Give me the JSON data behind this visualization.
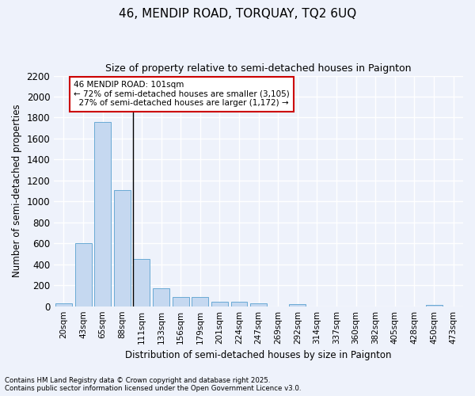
{
  "title_line1": "46, MENDIP ROAD, TORQUAY, TQ2 6UQ",
  "title_line2": "Size of property relative to semi-detached houses in Paignton",
  "xlabel": "Distribution of semi-detached houses by size in Paignton",
  "ylabel": "Number of semi-detached properties",
  "categories": [
    "20sqm",
    "43sqm",
    "65sqm",
    "88sqm",
    "111sqm",
    "133sqm",
    "156sqm",
    "179sqm",
    "201sqm",
    "224sqm",
    "247sqm",
    "269sqm",
    "292sqm",
    "314sqm",
    "337sqm",
    "360sqm",
    "382sqm",
    "405sqm",
    "428sqm",
    "450sqm",
    "473sqm"
  ],
  "values": [
    30,
    605,
    1760,
    1110,
    450,
    175,
    90,
    90,
    42,
    40,
    25,
    0,
    20,
    0,
    0,
    0,
    0,
    0,
    0,
    10,
    0
  ],
  "bar_color": "#c5d8f0",
  "bar_edge_color": "#6aaad4",
  "annotation_line1": "46 MENDIP ROAD: 101sqm",
  "annotation_line2": "← 72% of semi-detached houses are smaller (3,105)",
  "annotation_line3": "  27% of semi-detached houses are larger (1,172) →",
  "annotation_box_color": "#ffffff",
  "annotation_box_edge_color": "#cc0000",
  "ylim": [
    0,
    2200
  ],
  "yticks": [
    0,
    200,
    400,
    600,
    800,
    1000,
    1200,
    1400,
    1600,
    1800,
    2000,
    2200
  ],
  "background_color": "#eef2fb",
  "grid_color": "#ffffff",
  "footnote1": "Contains HM Land Registry data © Crown copyright and database right 2025.",
  "footnote2": "Contains public sector information licensed under the Open Government Licence v3.0."
}
